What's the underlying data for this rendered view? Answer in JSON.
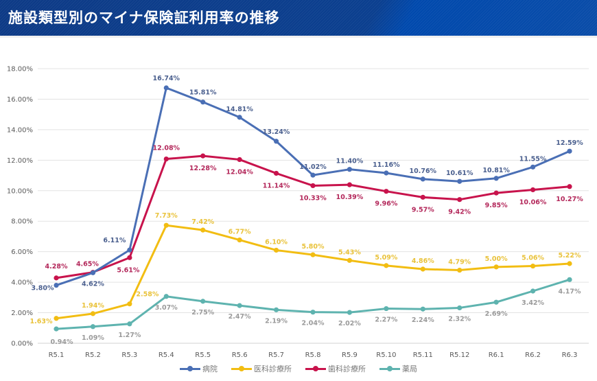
{
  "header": {
    "title": "施設類型別のマイナ保険証利用率の推移"
  },
  "chart_data": {
    "type": "line",
    "title": "施設類型別のマイナ保険証利用率の推移",
    "categories": [
      "R5.1",
      "R5.2",
      "R5.3",
      "R5.4",
      "R5.5",
      "R5.6",
      "R5.7",
      "R5.8",
      "R5.9",
      "R5.10",
      "R5.11",
      "R5.12",
      "R6.1",
      "R6.2",
      "R6.3"
    ],
    "ylim": [
      0,
      18
    ],
    "yticks": [
      "0.00%",
      "2.00%",
      "4.00%",
      "6.00%",
      "8.00%",
      "10.00%",
      "12.00%",
      "14.00%",
      "16.00%",
      "18.00%"
    ],
    "grid": true,
    "legend_position": "bottom",
    "series": [
      {
        "name": "病院",
        "color": "#4a6fb5",
        "label_color": "#4a5f8e",
        "values": [
          3.8,
          4.62,
          6.11,
          16.74,
          15.81,
          14.81,
          13.24,
          11.02,
          11.4,
          11.16,
          10.76,
          10.61,
          10.81,
          11.55,
          12.59
        ],
        "labels": [
          "3.80%",
          "4.62%",
          "6.11%",
          "16.74%",
          "15.81%",
          "14.81%",
          "13.24%",
          "11.02%",
          "11.40%",
          "11.16%",
          "10.76%",
          "10.61%",
          "10.81%",
          "11.55%",
          "12.59%"
        ]
      },
      {
        "name": "医科診療所",
        "color": "#f2bd12",
        "label_color": "#e9c23a",
        "values": [
          1.63,
          1.94,
          2.58,
          7.73,
          7.42,
          6.77,
          6.1,
          5.8,
          5.43,
          5.09,
          4.86,
          4.79,
          5.0,
          5.06,
          5.22
        ],
        "labels": [
          "1.63%",
          "1.94%",
          "2.58%",
          "7.73%",
          "7.42%",
          "6.77%",
          "6.10%",
          "5.80%",
          "5.43%",
          "5.09%",
          "4.86%",
          "4.79%",
          "5.00%",
          "5.06%",
          "5.22%"
        ]
      },
      {
        "name": "歯科診療所",
        "color": "#c8134c",
        "label_color": "#b3275a",
        "values": [
          4.28,
          4.65,
          5.61,
          12.08,
          12.28,
          12.04,
          11.14,
          10.33,
          10.39,
          9.96,
          9.57,
          9.42,
          9.85,
          10.06,
          10.27
        ],
        "labels": [
          "4.28%",
          "4.65%",
          "5.61%",
          "12.08%",
          "12.28%",
          "12.04%",
          "11.14%",
          "10.33%",
          "10.39%",
          "9.96%",
          "9.57%",
          "9.42%",
          "9.85%",
          "10.06%",
          "10.27%"
        ]
      },
      {
        "name": "薬局",
        "color": "#5eb3af",
        "label_color": "#9a9a9a",
        "values": [
          0.94,
          1.09,
          1.27,
          3.07,
          2.75,
          2.47,
          2.19,
          2.04,
          2.02,
          2.27,
          2.24,
          2.32,
          2.69,
          3.42,
          4.17
        ],
        "labels": [
          "0.94%",
          "1.09%",
          "1.27%",
          "3.07%",
          "2.75%",
          "2.47%",
          "2.19%",
          "2.04%",
          "2.02%",
          "2.27%",
          "2.24%",
          "2.32%",
          "2.69%",
          "3.42%",
          "4.17%"
        ]
      }
    ]
  }
}
